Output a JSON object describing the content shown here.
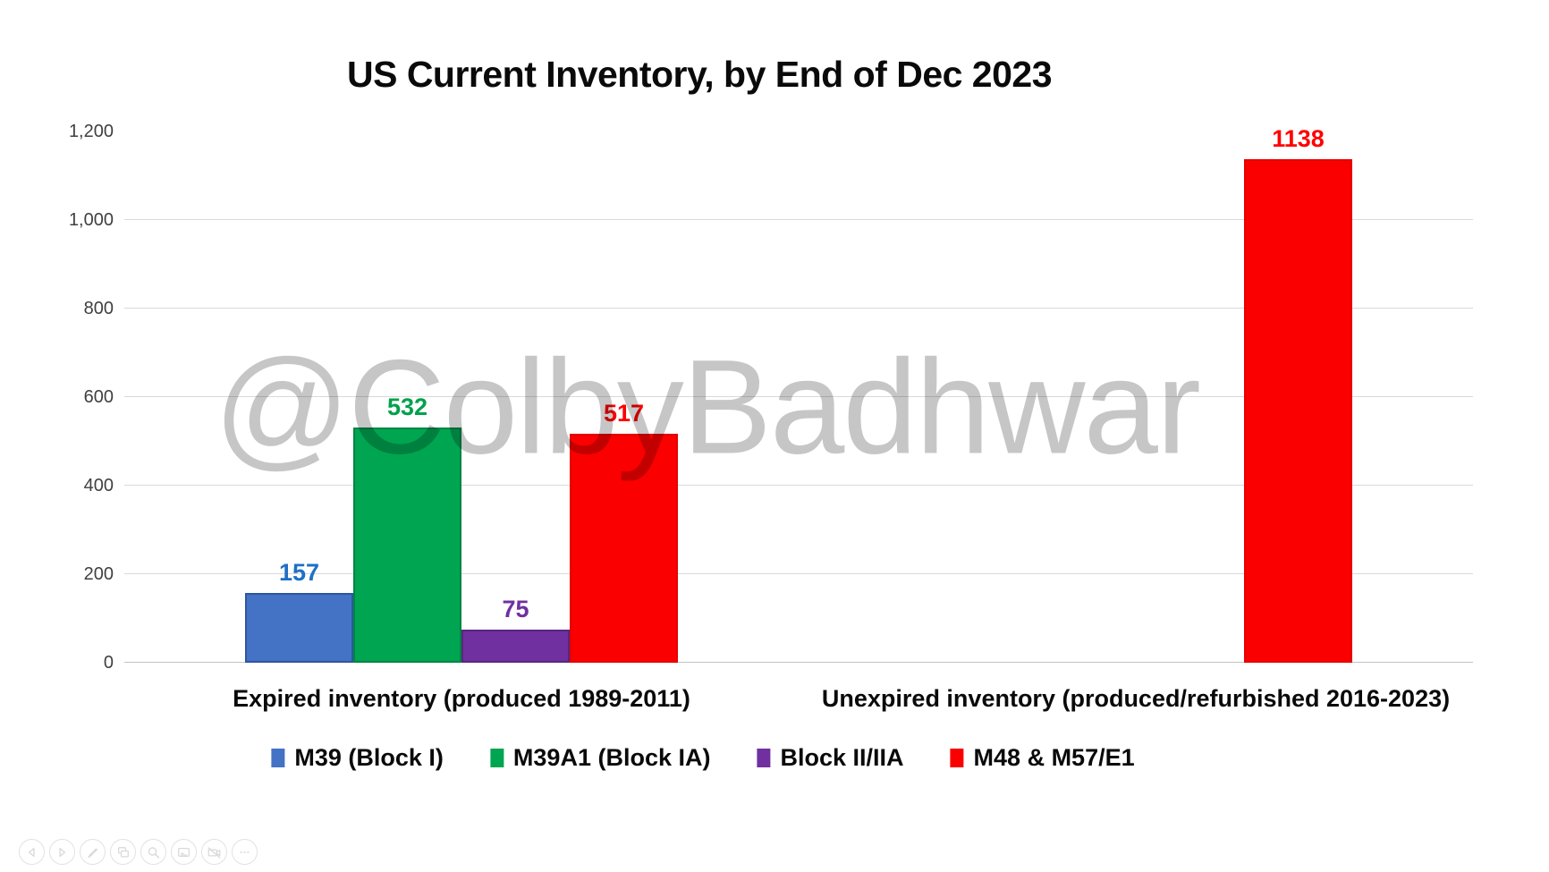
{
  "chart_data": {
    "type": "bar",
    "title": "US Current Inventory, by End of Dec 2023",
    "categories": [
      "Expired inventory (produced 1989-2011)",
      "Unexpired inventory (produced/refurbished 2016-2023)"
    ],
    "series": [
      {
        "name": "M39 (Block I)",
        "color": "#4472C4",
        "border_color": "#2C57A0",
        "label_color": "#1F6FC5",
        "values": [
          157,
          null
        ]
      },
      {
        "name": "M39A1 (Block IA)",
        "color": "#00A551",
        "border_color": "#008542",
        "label_color": "#00A14B",
        "values": [
          532,
          null
        ]
      },
      {
        "name": "Block II/IIA",
        "color": "#7030A0",
        "border_color": "#582680",
        "label_color": "#7030A0",
        "values": [
          75,
          null
        ]
      },
      {
        "name": "M48 & M57/E1",
        "color": "#FB0000",
        "border_color": "#E60000",
        "label_color": "#FF0000",
        "values": [
          517,
          1138
        ]
      }
    ],
    "ylim": [
      0,
      1200
    ],
    "ytick_interval": 200,
    "yticks": [
      {
        "value": 0,
        "label": "0"
      },
      {
        "value": 200,
        "label": "200"
      },
      {
        "value": 400,
        "label": "400"
      },
      {
        "value": 600,
        "label": "600"
      },
      {
        "value": 800,
        "label": "800"
      },
      {
        "value": 1000,
        "label": "1,000"
      },
      {
        "value": 1200,
        "label": "1,200"
      }
    ],
    "grid": true,
    "legend_position": "bottom",
    "data_labels": true
  },
  "watermark": {
    "text": "@ColbyBadhwar"
  },
  "toolbar": {
    "buttons": [
      {
        "name": "previous-slide-button",
        "icon": "chevron-left-icon"
      },
      {
        "name": "next-slide-button",
        "icon": "chevron-right-icon"
      },
      {
        "name": "pen-annotate-button",
        "icon": "pen-icon"
      },
      {
        "name": "see-all-slides-button",
        "icon": "slides-grid-icon"
      },
      {
        "name": "zoom-button",
        "icon": "magnifier-icon"
      },
      {
        "name": "captions-button",
        "icon": "captions-icon"
      },
      {
        "name": "camera-toggle-button",
        "icon": "camera-off-icon"
      },
      {
        "name": "more-options-button",
        "icon": "ellipsis-icon"
      }
    ]
  }
}
